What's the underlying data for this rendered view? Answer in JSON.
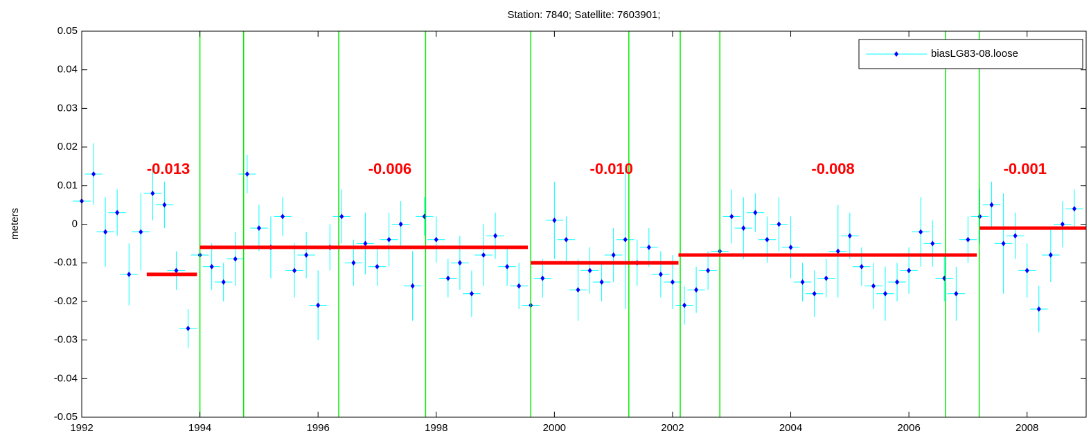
{
  "chart_data": {
    "type": "errorbar",
    "title": "Station: 7840; Satellite: 7603901;",
    "y_label": "meters",
    "xlim": [
      1992,
      2009
    ],
    "ylim": [
      -0.05,
      0.05
    ],
    "xticks": [
      1992,
      1994,
      1996,
      1998,
      2000,
      2002,
      2004,
      2006,
      2008
    ],
    "yticks": [
      -0.05,
      -0.04,
      -0.03,
      -0.02,
      -0.01,
      0,
      0.01,
      0.02,
      0.03,
      0.04,
      0.05
    ],
    "legend": "northeast",
    "series": [
      {
        "name": "biasLG83-08.loose",
        "color": "#0000ff",
        "error_color": "#00ffff",
        "xerror": 0.15,
        "x": [
          1992.0,
          1992.2,
          1992.4,
          1992.6,
          1992.8,
          1993.0,
          1993.2,
          1993.4,
          1993.6,
          1993.8,
          1994.0,
          1994.2,
          1994.4,
          1994.6,
          1994.8,
          1995.0,
          1995.2,
          1995.4,
          1995.6,
          1995.8,
          1996.0,
          1996.2,
          1996.4,
          1996.6,
          1996.8,
          1997.0,
          1997.2,
          1997.4,
          1997.6,
          1997.8,
          1998.0,
          1998.2,
          1998.4,
          1998.6,
          1998.8,
          1999.0,
          1999.2,
          1999.4,
          1999.6,
          1999.8,
          2000.0,
          2000.2,
          2000.4,
          2000.6,
          2000.8,
          2001.0,
          2001.2,
          2001.4,
          2001.6,
          2001.8,
          2002.0,
          2002.2,
          2002.4,
          2002.6,
          2002.8,
          2003.0,
          2003.2,
          2003.4,
          2003.6,
          2003.8,
          2004.0,
          2004.2,
          2004.4,
          2004.6,
          2004.8,
          2005.0,
          2005.2,
          2005.4,
          2005.6,
          2005.8,
          2006.0,
          2006.2,
          2006.4,
          2006.6,
          2006.8,
          2007.0,
          2007.2,
          2007.4,
          2007.6,
          2007.8,
          2008.0,
          2008.2,
          2008.4,
          2008.6,
          2008.8
        ],
        "values": [
          0.006,
          0.013,
          -0.002,
          0.003,
          -0.013,
          -0.002,
          0.008,
          0.005,
          -0.012,
          -0.027,
          -0.008,
          -0.011,
          -0.015,
          -0.009,
          0.013,
          -0.001,
          -0.006,
          0.002,
          -0.012,
          -0.008,
          -0.021,
          -0.006,
          0.002,
          -0.01,
          -0.005,
          -0.011,
          -0.004,
          0.0,
          -0.016,
          0.002,
          -0.004,
          -0.014,
          -0.01,
          -0.018,
          -0.008,
          -0.003,
          -0.011,
          -0.016,
          -0.021,
          -0.014,
          0.001,
          -0.004,
          -0.017,
          -0.012,
          -0.015,
          -0.008,
          -0.004,
          -0.01,
          -0.006,
          -0.013,
          -0.015,
          -0.021,
          -0.017,
          -0.012,
          -0.007,
          0.002,
          -0.001,
          0.003,
          -0.004,
          0.0,
          -0.006,
          -0.015,
          -0.018,
          -0.014,
          -0.007,
          -0.003,
          -0.011,
          -0.016,
          -0.018,
          -0.015,
          -0.012,
          -0.002,
          -0.005,
          -0.014,
          -0.018,
          -0.004,
          0.002,
          0.005,
          -0.005,
          -0.003,
          -0.012,
          -0.022,
          -0.008,
          0.0,
          0.004
        ],
        "errors": [
          0.011,
          0.008,
          0.009,
          0.006,
          0.008,
          0.01,
          0.007,
          0.006,
          0.005,
          0.005,
          0.008,
          0.006,
          0.005,
          0.007,
          0.005,
          0.006,
          0.008,
          0.005,
          0.007,
          0.006,
          0.009,
          0.006,
          0.007,
          0.006,
          0.008,
          0.005,
          0.007,
          0.006,
          0.009,
          0.005,
          0.006,
          0.005,
          0.007,
          0.006,
          0.008,
          0.006,
          0.005,
          0.006,
          0.005,
          0.005,
          0.01,
          0.006,
          0.008,
          0.006,
          0.005,
          0.007,
          0.018,
          0.006,
          0.005,
          0.006,
          0.007,
          0.005,
          0.006,
          0.005,
          0.006,
          0.007,
          0.008,
          0.005,
          0.006,
          0.007,
          0.008,
          0.005,
          0.006,
          0.005,
          0.012,
          0.006,
          0.005,
          0.006,
          0.007,
          0.005,
          0.006,
          0.009,
          0.006,
          0.006,
          0.007,
          0.006,
          0.007,
          0.006,
          0.013,
          0.006,
          0.007,
          0.006,
          0.007,
          0.006,
          0.005
        ]
      }
    ],
    "breaks": [
      1994.0,
      1994.74,
      1996.35,
      1997.82,
      1999.6,
      2001.26,
      2002.13,
      2002.8,
      2006.62,
      2007.19
    ],
    "break_color": "#00ee00",
    "means": [
      {
        "x0": 1993.1,
        "x1": 1993.95,
        "value": -0.013,
        "label": "-0.013",
        "label_x": 1993.1
      },
      {
        "x0": 1994.0,
        "x1": 1999.55,
        "value": -0.006,
        "label": "-0.006",
        "label_x": 1996.85
      },
      {
        "x0": 1999.6,
        "x1": 2002.1,
        "value": -0.01,
        "label": "-0.010",
        "label_x": 2000.6
      },
      {
        "x0": 2002.1,
        "x1": 2007.15,
        "value": -0.008,
        "label": "-0.008",
        "label_x": 2004.35
      },
      {
        "x0": 2007.2,
        "x1": 2009.0,
        "value": -0.001,
        "label": "-0.001",
        "label_x": 2007.6
      }
    ],
    "mean_color": "#ff0000"
  }
}
